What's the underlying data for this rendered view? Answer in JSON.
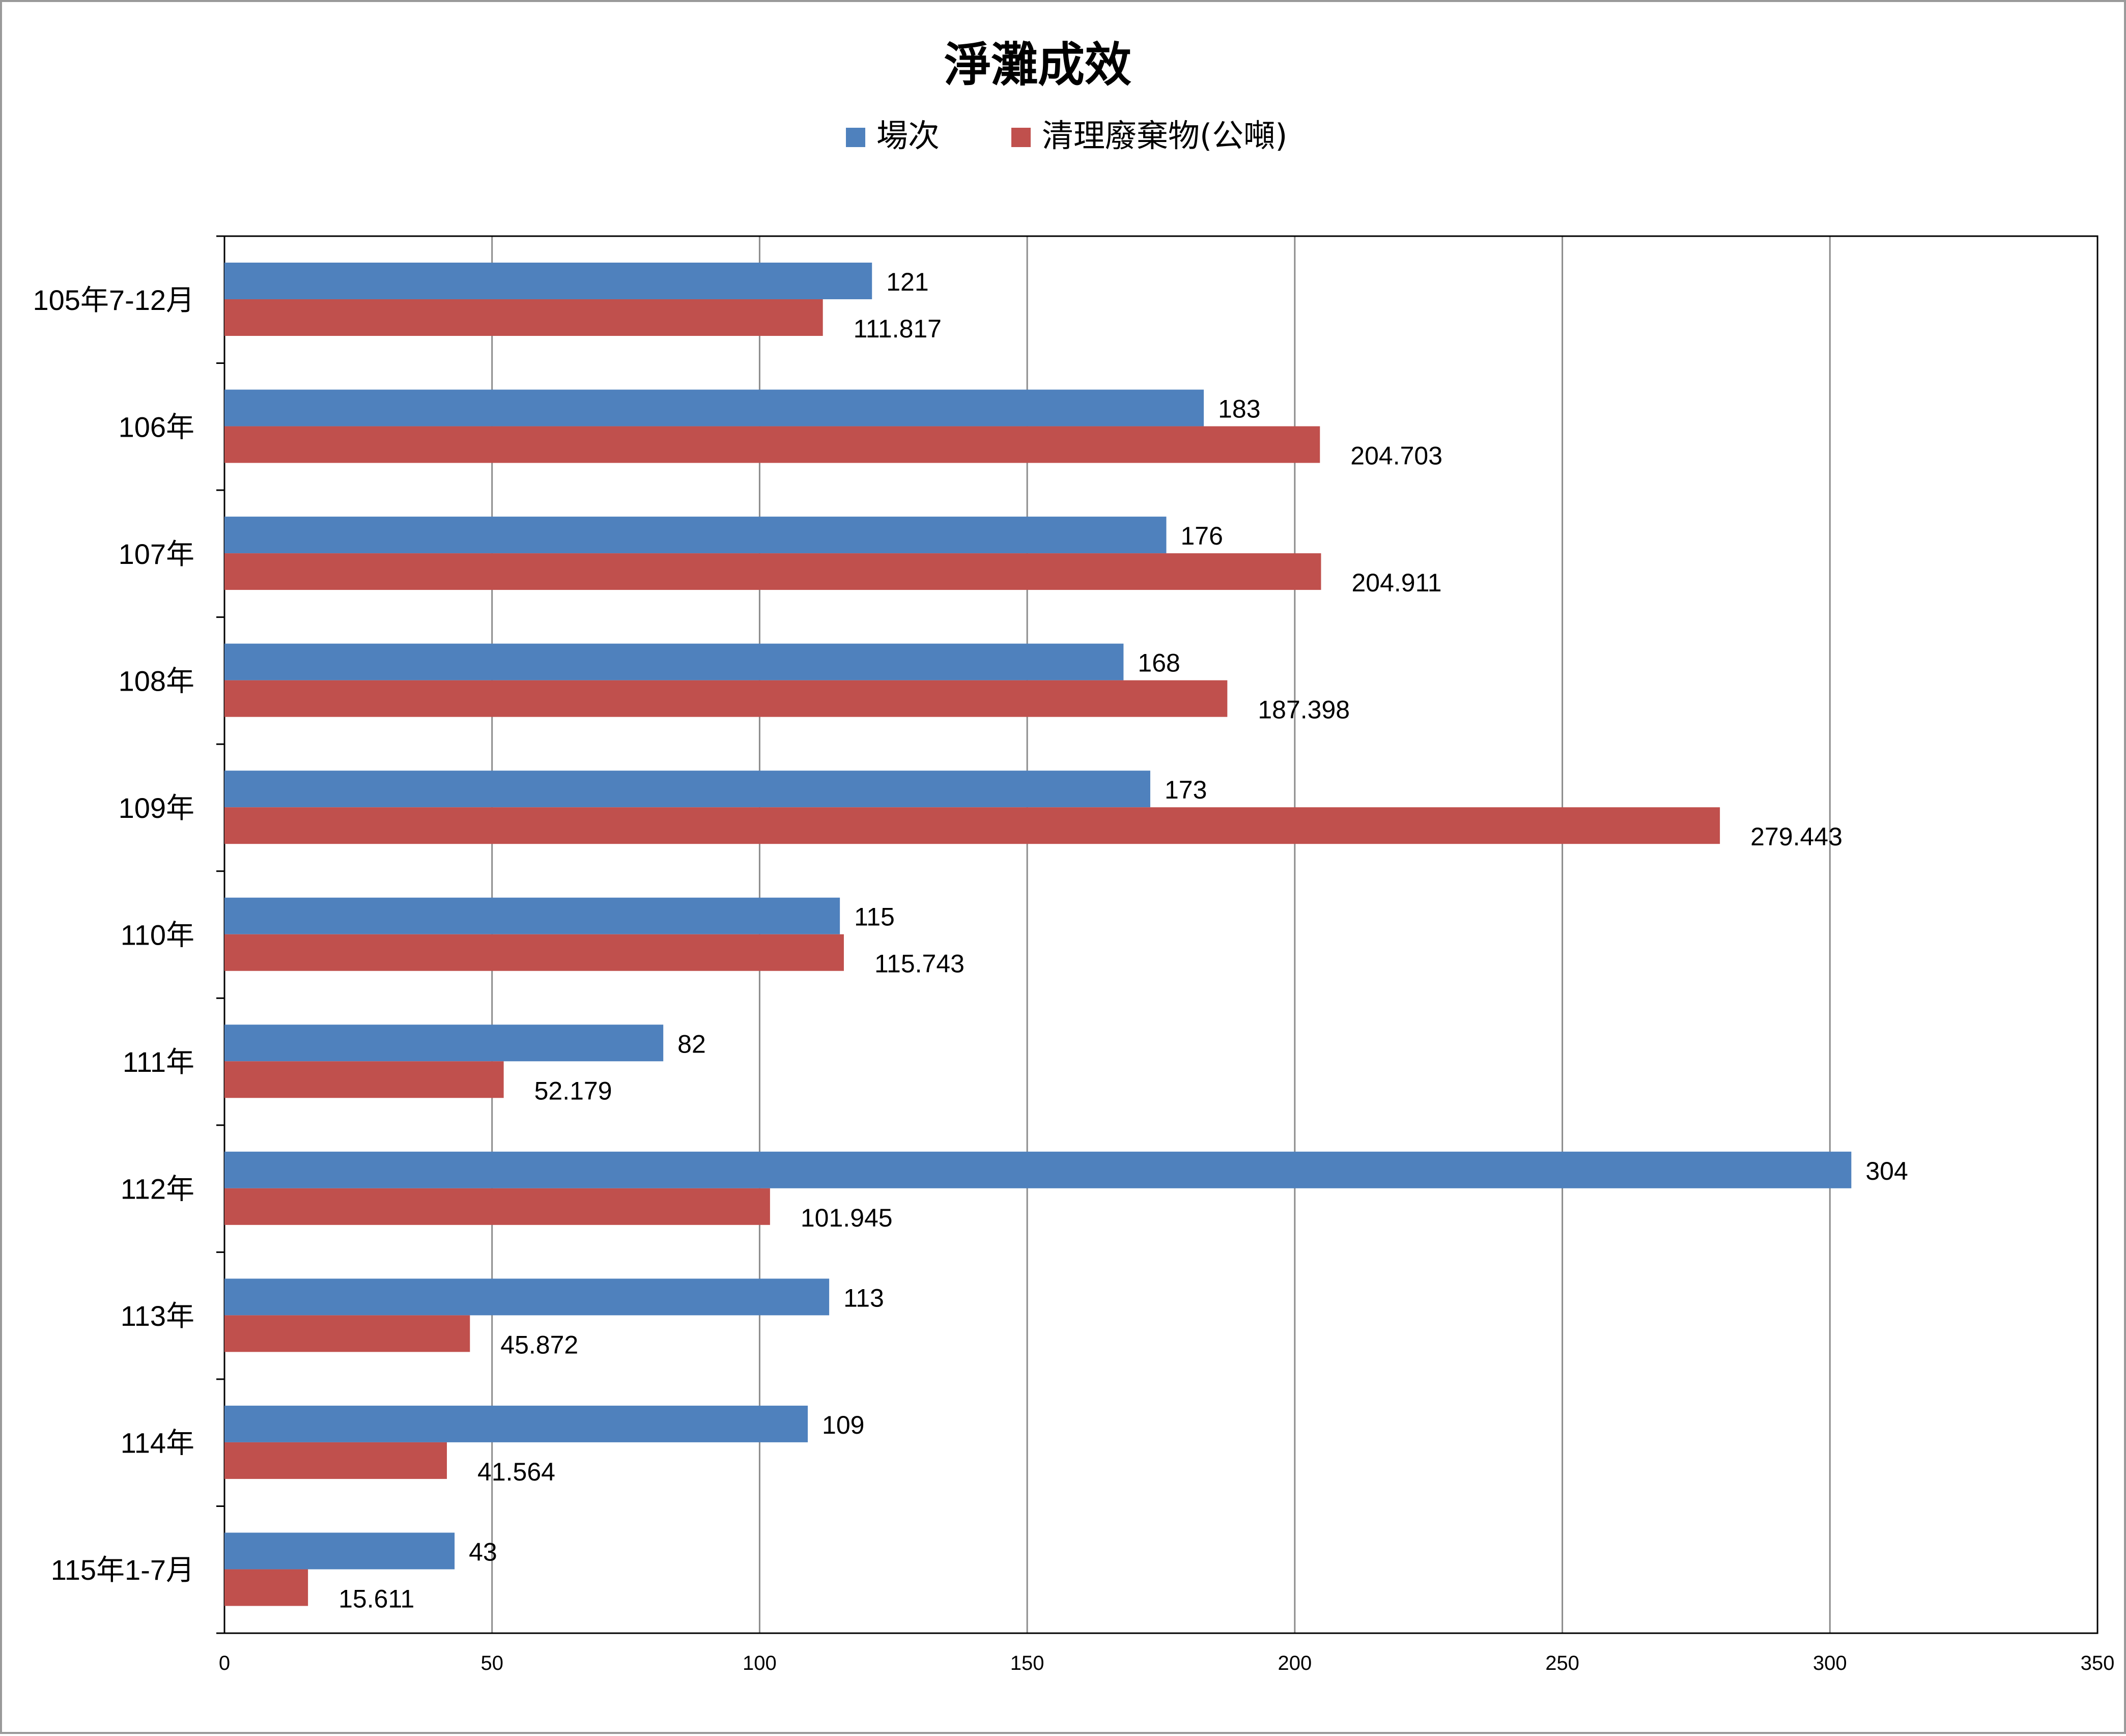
{
  "chart_data": {
    "type": "bar",
    "orientation": "horizontal",
    "title": "淨灘成效",
    "categories": [
      "105年7-12月",
      "106年",
      "107年",
      "108年",
      "109年",
      "110年",
      "111年",
      "112年",
      "113年",
      "114年",
      "115年1-7月"
    ],
    "series": [
      {
        "name": "場次",
        "color": "#4F81BD",
        "values": [
          121,
          183,
          176,
          168,
          173,
          115,
          82,
          304,
          113,
          109,
          43
        ],
        "labels": [
          "121",
          "183",
          "176",
          "168",
          "173",
          "115",
          "82",
          "304",
          "113",
          "109",
          "43"
        ]
      },
      {
        "name": "清理廢棄物(公噸)",
        "color": "#C0504D",
        "values": [
          111.817,
          204.703,
          204.911,
          187.398,
          279.443,
          115.743,
          52.179,
          101.945,
          45.872,
          41.564,
          15.611
        ],
        "labels": [
          "111.817",
          "204.703",
          "204.911",
          "187.398",
          "279.443",
          "115.743",
          "52.179",
          "101.945",
          "45.872",
          "41.564",
          "15.611"
        ]
      }
    ],
    "xlim": [
      0,
      350
    ],
    "x_ticks": [
      0,
      50,
      100,
      150,
      200,
      250,
      300,
      350
    ],
    "x_tick_labels": [
      "0",
      "50",
      "100",
      "150",
      "200",
      "250",
      "300",
      "350"
    ],
    "grid": true,
    "legend_position": "top-center",
    "xlabel": "",
    "ylabel": ""
  }
}
